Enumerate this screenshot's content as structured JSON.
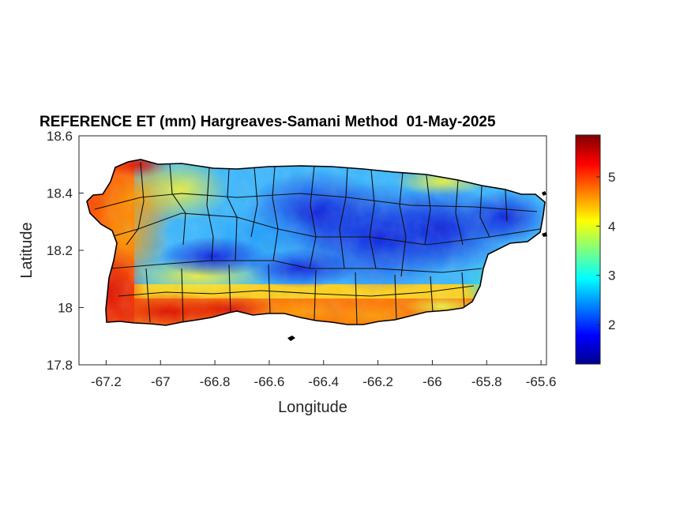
{
  "title": "REFERENCE ET (mm) Hargreaves-Samani Method  01-May-2025",
  "map": {
    "type": "heatmap",
    "xlabel": "Longitude",
    "ylabel": "Latitude",
    "xlim": [
      -67.3,
      -65.58
    ],
    "ylim": [
      17.8,
      18.6
    ],
    "xticks": [
      "-67.2",
      "-67",
      "-66.8",
      "-66.6",
      "-66.4",
      "-66.2",
      "-66",
      "-65.8",
      "-65.6"
    ],
    "yticks": [
      "18.6",
      "18.4",
      "18.2",
      "18",
      "17.8"
    ],
    "colormap": "jet",
    "colorbar": {
      "range": [
        1.2,
        5.85
      ],
      "ticks": [
        "5",
        "4",
        "3",
        "2"
      ]
    }
  },
  "chart_data": {
    "type": "heatmap",
    "title": "REFERENCE ET (mm) Hargreaves-Samani Method  01-May-2025",
    "xlabel": "Longitude",
    "ylabel": "Latitude",
    "xlim": [
      -67.3,
      -65.58
    ],
    "ylim": [
      17.8,
      18.6
    ],
    "value_range": [
      1.2,
      5.85
    ],
    "colorbar_ticks": [
      2,
      3,
      4,
      5
    ],
    "grid": false
  }
}
